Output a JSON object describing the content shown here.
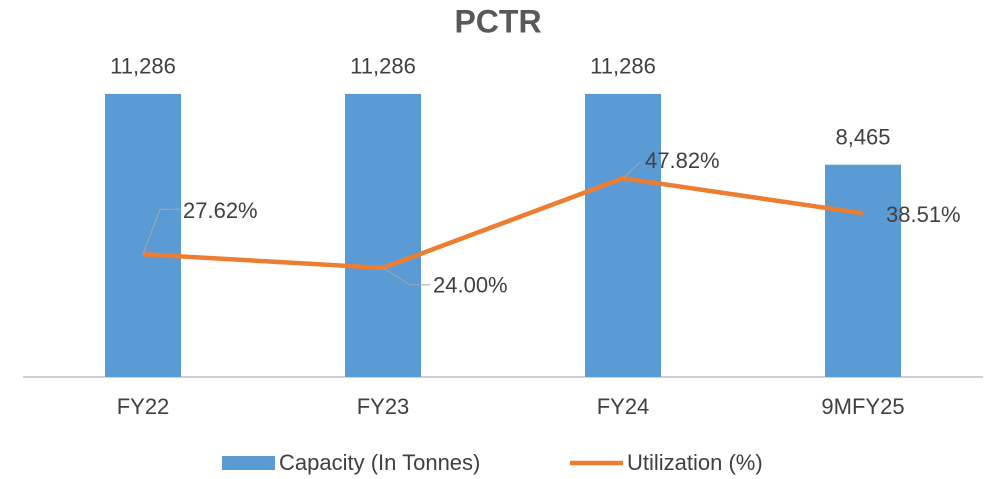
{
  "chart_data": {
    "type": "bar",
    "title": "PCTR",
    "categories": [
      "FY22",
      "FY23",
      "FY24",
      "9MFY25"
    ],
    "series": [
      {
        "name": "Capacity (In Tonnes)",
        "type": "bar",
        "color": "#5b9bd5",
        "values": [
          11286,
          11286,
          11286,
          8465
        ],
        "value_labels": [
          "11,286",
          "11,286",
          "11,286",
          "8,465"
        ]
      },
      {
        "name": "Utilization (%)",
        "type": "line",
        "axis": "y2",
        "color": "#ed7d31",
        "values": [
          27.62,
          24.0,
          47.82,
          38.51
        ],
        "value_labels": [
          "27.62%",
          "24.00%",
          "47.82%",
          "38.51%"
        ]
      }
    ],
    "ylim": [
      0,
      12000
    ],
    "y2lim": [
      -5,
      75
    ],
    "legend": "bottom"
  }
}
